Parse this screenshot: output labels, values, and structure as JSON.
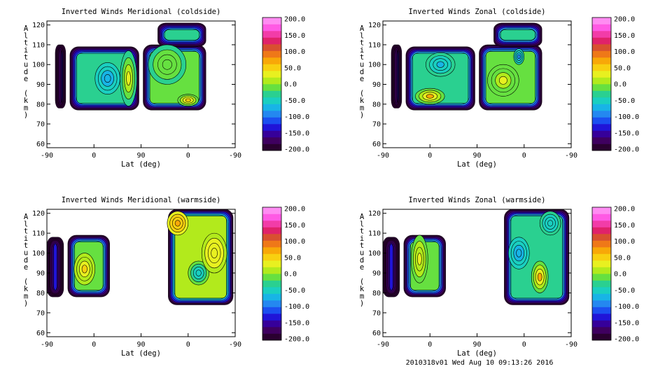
{
  "footer": "2010318v01 Wed Aug 10 09:13:26 2016",
  "colors": {
    "scale": [
      "#2a0030",
      "#3f005f",
      "#36009a",
      "#2014d8",
      "#1b4ff0",
      "#2488f0",
      "#18b4e6",
      "#1acfc0",
      "#2ad090",
      "#66e040",
      "#b2ea1c",
      "#e8f020",
      "#f8d010",
      "#f8a808",
      "#ef7818",
      "#d85030",
      "#e0226a",
      "#f23ca8",
      "#ff5ae4",
      "#ff8cf2"
    ],
    "contour_line": "#000000",
    "background": "#ffffff"
  },
  "chart_data": [
    {
      "type": "heatmap",
      "title": "Inverted Winds Meridional (coldside)",
      "xlabel": "Lat (deg)",
      "ylabel": "Altitude (km)",
      "x_ticks": [
        "-90",
        "0",
        "90",
        "0",
        "-90"
      ],
      "y_ticks": [
        "60",
        "70",
        "80",
        "90",
        "100",
        "110",
        "120"
      ],
      "ylim": [
        58,
        122
      ],
      "colorbar": {
        "ticks": [
          "200.0",
          "150.0",
          "100.0",
          "50.0",
          "0.0",
          "-50.0",
          "-100.0",
          "-150.0",
          "-200.0"
        ],
        "range": [
          -200,
          200
        ]
      },
      "regions": [
        {
          "x": [
            -82,
            -72
          ],
          "y": [
            78,
            110
          ],
          "v": -135
        },
        {
          "x": [
            -68,
            -2
          ],
          "y": [
            77,
            109
          ],
          "v": -40
        },
        {
          "x": [
            2,
            62
          ],
          "y": [
            77,
            110
          ],
          "v": -15
        },
        {
          "x": [
            16,
            62
          ],
          "y": [
            109,
            121
          ],
          "v": -35
        }
      ],
      "features": [
        {
          "x": -32,
          "y": 93,
          "v": -80,
          "w": 12,
          "h": 8
        },
        {
          "x": -12,
          "y": 93,
          "v": 30,
          "w": 8,
          "h": 14
        },
        {
          "x": 45,
          "y": 82,
          "v": 55,
          "w": 10,
          "h": 3
        },
        {
          "x": 25,
          "y": 100,
          "v": -5,
          "w": 18,
          "h": 10
        }
      ]
    },
    {
      "type": "heatmap",
      "title": "Inverted Winds Zonal (coldside)",
      "xlabel": "Lat (deg)",
      "ylabel": "Altitude (km)",
      "x_ticks": [
        "-90",
        "0",
        "90",
        "0",
        "-90"
      ],
      "y_ticks": [
        "60",
        "70",
        "80",
        "90",
        "100",
        "110",
        "120"
      ],
      "ylim": [
        58,
        122
      ],
      "colorbar": {
        "ticks": [
          "200.0",
          "150.0",
          "100.0",
          "50.0",
          "0.0",
          "-50.0",
          "-100.0",
          "-150.0",
          "-200.0"
        ],
        "range": [
          -200,
          200
        ]
      },
      "regions": [
        {
          "x": [
            -82,
            -72
          ],
          "y": [
            78,
            110
          ],
          "v": -140
        },
        {
          "x": [
            -68,
            -2
          ],
          "y": [
            77,
            109
          ],
          "v": -30
        },
        {
          "x": [
            2,
            62
          ],
          "y": [
            77,
            110
          ],
          "v": -20
        },
        {
          "x": [
            16,
            62
          ],
          "y": [
            109,
            121
          ],
          "v": -30
        }
      ],
      "features": [
        {
          "x": -45,
          "y": 84,
          "v": 60,
          "w": 14,
          "h": 4
        },
        {
          "x": -35,
          "y": 100,
          "v": -70,
          "w": 14,
          "h": 6
        },
        {
          "x": 40,
          "y": 104,
          "v": -90,
          "w": 5,
          "h": 4
        },
        {
          "x": 25,
          "y": 92,
          "v": 20,
          "w": 15,
          "h": 8
        }
      ]
    },
    {
      "type": "heatmap",
      "title": "Inverted Winds Meridional (warmside)",
      "xlabel": "Lat (deg)",
      "ylabel": "Altitude (km)",
      "x_ticks": [
        "-90",
        "0",
        "90",
        "0",
        "-90"
      ],
      "y_ticks": [
        "60",
        "70",
        "80",
        "90",
        "100",
        "110",
        "120"
      ],
      "ylim": [
        58,
        122
      ],
      "colorbar": {
        "ticks": [
          "200.0",
          "150.0",
          "100.0",
          "50.0",
          "0.0",
          "-50.0",
          "-100.0",
          "-150.0",
          "-200.0"
        ],
        "range": [
          -200,
          200
        ]
      },
      "regions": [
        {
          "x": [
            -90,
            -74
          ],
          "y": [
            78,
            108
          ],
          "v": -140
        },
        {
          "x": [
            -70,
            -30
          ],
          "y": [
            78,
            109
          ],
          "v": -10
        },
        {
          "x": [
            26,
            88
          ],
          "y": [
            74,
            122
          ],
          "v": 10
        }
      ],
      "features": [
        {
          "x": -54,
          "y": 92,
          "v": 40,
          "w": 10,
          "h": 8
        },
        {
          "x": 35,
          "y": 115,
          "v": 70,
          "w": 10,
          "h": 6
        },
        {
          "x": 55,
          "y": 90,
          "v": -60,
          "w": 10,
          "h": 6
        },
        {
          "x": 70,
          "y": 100,
          "v": 30,
          "w": 12,
          "h": 10
        }
      ]
    },
    {
      "type": "heatmap",
      "title": "Inverted Winds Zonal (warmside)",
      "xlabel": "Lat (deg)",
      "ylabel": "Altitude (km)",
      "x_ticks": [
        "-90",
        "0",
        "90",
        "0",
        "-90"
      ],
      "y_ticks": [
        "60",
        "70",
        "80",
        "90",
        "100",
        "110",
        "120"
      ],
      "ylim": [
        58,
        122
      ],
      "colorbar": {
        "ticks": [
          "200.0",
          "150.0",
          "100.0",
          "50.0",
          "0.0",
          "-50.0",
          "-100.0",
          "-150.0",
          "-200.0"
        ],
        "range": [
          -200,
          200
        ]
      },
      "regions": [
        {
          "x": [
            -90,
            -74
          ],
          "y": [
            78,
            108
          ],
          "v": -140
        },
        {
          "x": [
            -70,
            -30
          ],
          "y": [
            78,
            109
          ],
          "v": -20
        },
        {
          "x": [
            26,
            88
          ],
          "y": [
            74,
            122
          ],
          "v": -30
        }
      ],
      "features": [
        {
          "x": -55,
          "y": 97,
          "v": 30,
          "w": 8,
          "h": 12
        },
        {
          "x": 60,
          "y": 88,
          "v": 60,
          "w": 8,
          "h": 8
        },
        {
          "x": 40,
          "y": 100,
          "v": -80,
          "w": 10,
          "h": 8
        },
        {
          "x": 70,
          "y": 115,
          "v": -60,
          "w": 10,
          "h": 6
        }
      ]
    }
  ]
}
